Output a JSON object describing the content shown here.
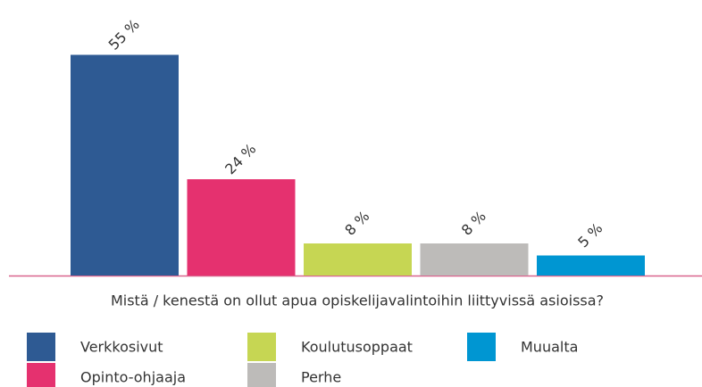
{
  "chart_data": {
    "type": "bar",
    "categories": [
      "Verkkosivut",
      "Opinto-ohjaaja",
      "Koulutusoppaat",
      "Perhe",
      "Muualta"
    ],
    "values": [
      55,
      24,
      8,
      8,
      5
    ],
    "value_labels": [
      "55 %",
      "24 %",
      "8 %",
      "8 %",
      "5 %"
    ],
    "colors": [
      "#2e5a93",
      "#e5316f",
      "#c6d653",
      "#bdbbb9",
      "#0096d2"
    ],
    "x_label": "Mistä / kenestä on ollut apua opiskelijavalintoihin liittyvissä asioissa?"
  }
}
